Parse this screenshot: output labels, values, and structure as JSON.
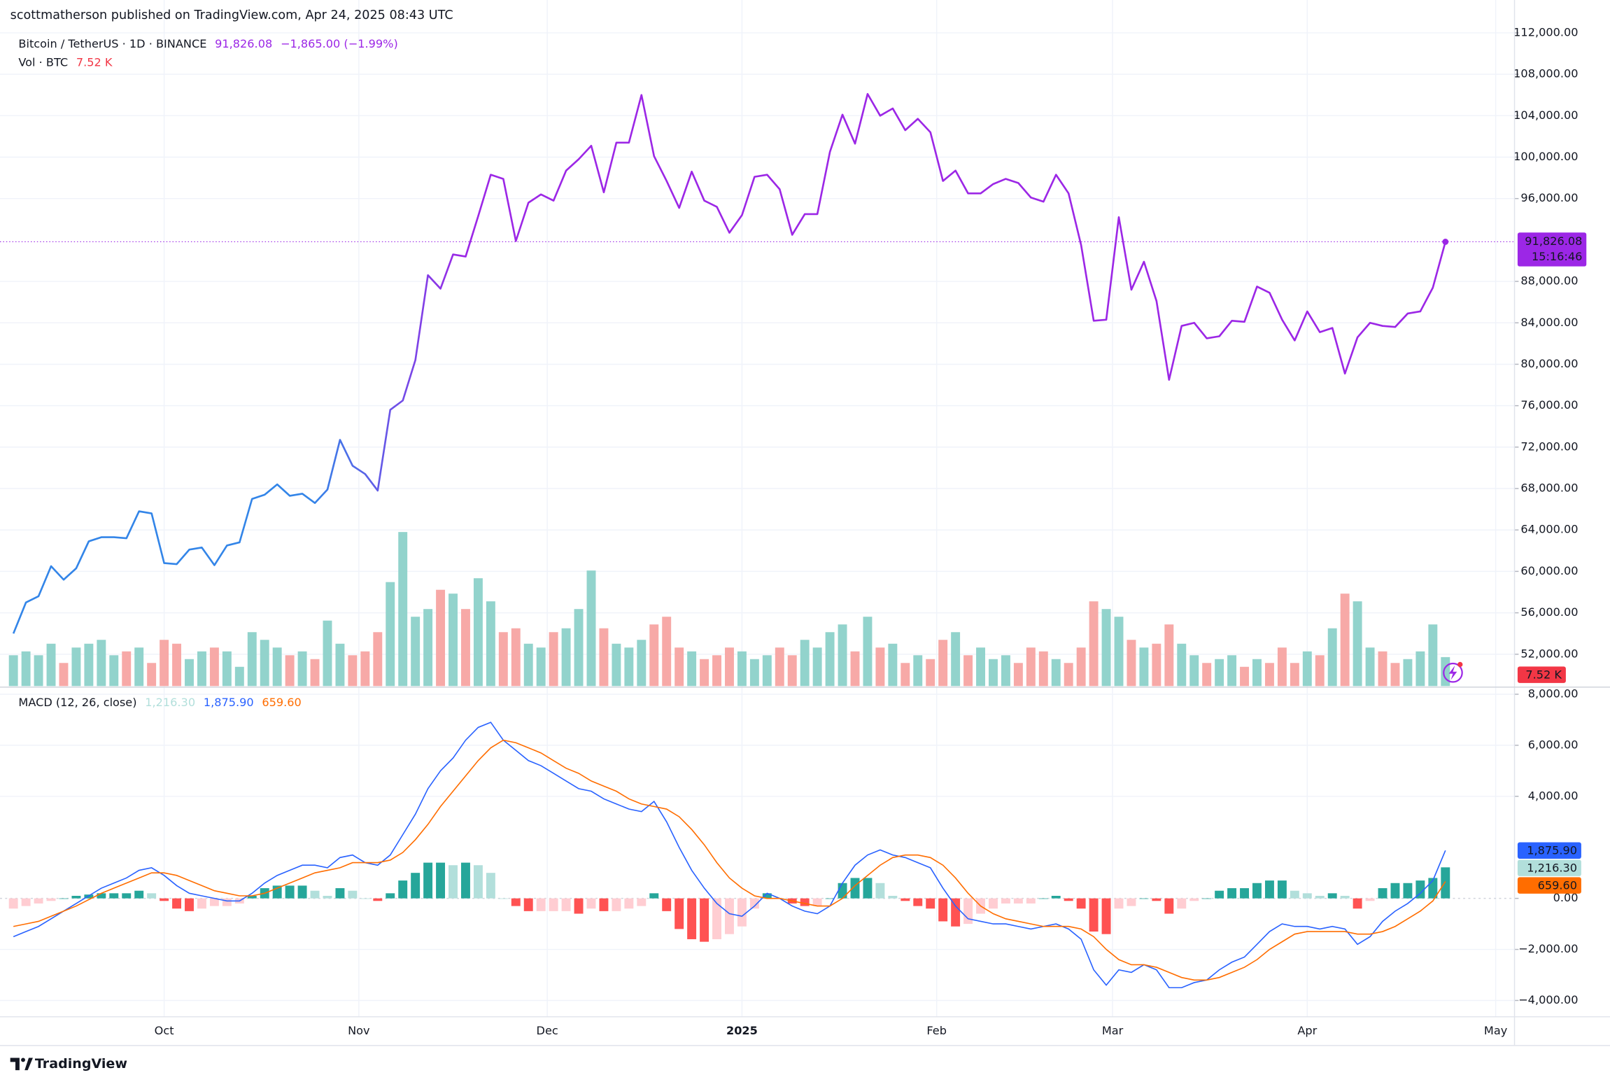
{
  "header": "scottmatherson published on TradingView.com, Apr 24, 2025 08:43 UTC",
  "footer": {
    "brand": "TradingView"
  },
  "chart_data": [
    {
      "type": "line",
      "title": "Bitcoin / TetherUS · 1D · BINANCE",
      "last_label": "91,826.08",
      "change_label": "−1,865.00 (−1.99%)",
      "countdown": "15:16:46",
      "color": "#9c27e6",
      "gradient_from": "#3385e8",
      "x": [
        0,
        2,
        4,
        6,
        8,
        10,
        12,
        14,
        16,
        18,
        20,
        22,
        24,
        26,
        28,
        30,
        32,
        34,
        36,
        38,
        40,
        42,
        44,
        46,
        48,
        50,
        52,
        54,
        56,
        58,
        60,
        62,
        64,
        66,
        68,
        70,
        72,
        74,
        76,
        78,
        80,
        82,
        84,
        86,
        88,
        90,
        92,
        94,
        96,
        98,
        100,
        102,
        104,
        106,
        108,
        110,
        112,
        114,
        116,
        118,
        120,
        122,
        124,
        126,
        128,
        130,
        132,
        134,
        136,
        138,
        140,
        142,
        144,
        146,
        148,
        150,
        152,
        154,
        156,
        158,
        160,
        162,
        164,
        166,
        168,
        170,
        172,
        174,
        176,
        178,
        180,
        182,
        184,
        186,
        188,
        190,
        192,
        194,
        196,
        198,
        200,
        202,
        204,
        206,
        208,
        210,
        212,
        214,
        216,
        218,
        220,
        222,
        224,
        226,
        228
      ],
      "values": [
        54000,
        57000,
        57600,
        60500,
        59200,
        60300,
        62900,
        63300,
        63300,
        63200,
        65800,
        65600,
        60800,
        60700,
        62100,
        62300,
        60600,
        62500,
        62800,
        67000,
        67400,
        68400,
        67300,
        67500,
        66600,
        67900,
        72700,
        70200,
        69400,
        67800,
        75600,
        76500,
        80400,
        88600,
        87300,
        90600,
        90400,
        94300,
        98300,
        97900,
        91900,
        95600,
        96400,
        95800,
        98700,
        99800,
        101100,
        96600,
        101400,
        101400,
        106000,
        100100,
        97700,
        95100,
        98600,
        95800,
        95200,
        92700,
        94400,
        98100,
        98300,
        96900,
        92500,
        94500,
        94500,
        100500,
        104100,
        101300,
        106100,
        104000,
        104700,
        102600,
        103700,
        102400,
        97700,
        98700,
        96500,
        96500,
        97400,
        97900,
        97500,
        96100,
        95700,
        98300,
        96500,
        91500,
        84200,
        84300,
        94200,
        87200,
        89900,
        86100,
        78500,
        83700,
        84000,
        82500,
        82700,
        84200,
        84100,
        87500,
        86900,
        84300,
        82300,
        85100,
        83100,
        83500,
        79100,
        82600,
        84000,
        83700,
        83600,
        84900,
        85100,
        87400,
        91826.08
      ],
      "xlim": [
        -0.5,
        239
      ],
      "xticks": [
        {
          "value": 24,
          "label": "Oct"
        },
        {
          "value": 55,
          "label": "Nov"
        },
        {
          "value": 85,
          "label": "Dec"
        },
        {
          "value": 116,
          "label": "2025"
        },
        {
          "value": 147,
          "label": "Feb"
        },
        {
          "value": 175,
          "label": "Mar"
        },
        {
          "value": 206,
          "label": "Apr"
        },
        {
          "value": 236,
          "label": "May"
        }
      ],
      "ylim": [
        48925,
        112990
      ],
      "yticks": [
        {
          "value": 52000,
          "label": "52,000.00"
        },
        {
          "value": 56000,
          "label": "56,000.00"
        },
        {
          "value": 60000,
          "label": "60,000.00"
        },
        {
          "value": 64000,
          "label": "64,000.00"
        },
        {
          "value": 68000,
          "label": "68,000.00"
        },
        {
          "value": 72000,
          "label": "72,000.00"
        },
        {
          "value": 76000,
          "label": "76,000.00"
        },
        {
          "value": 80000,
          "label": "80,000.00"
        },
        {
          "value": 84000,
          "label": "84,000.00"
        },
        {
          "value": 88000,
          "label": "88,000.00"
        },
        {
          "value": 96000,
          "label": "96,000.00"
        },
        {
          "value": 100000,
          "label": "100,000.00"
        },
        {
          "value": 104000,
          "label": "104,000.00"
        },
        {
          "value": 108000,
          "label": "108,000.00"
        },
        {
          "value": 112000,
          "label": "112,000.00"
        }
      ],
      "grid": true
    },
    {
      "type": "bar",
      "title": "Vol · BTC",
      "last_label": "7.52 K",
      "up_color": "#92d3cc",
      "down_color": "#f7a9a7",
      "label_color": "#f23645",
      "values": [
        8,
        9,
        8,
        11,
        6,
        10,
        11,
        12,
        8,
        9,
        10,
        6,
        12,
        11,
        7,
        9,
        10,
        9,
        5,
        14,
        12,
        10,
        8,
        9,
        7,
        17,
        11,
        8,
        9,
        14,
        27,
        40,
        18,
        20,
        25,
        24,
        20,
        28,
        22,
        14,
        15,
        11,
        10,
        14,
        15,
        20,
        30,
        15,
        11,
        10,
        12,
        16,
        18,
        10,
        9,
        7,
        8,
        10,
        9,
        7,
        8,
        10,
        8,
        12,
        10,
        14,
        16,
        9,
        18,
        10,
        11,
        6,
        8,
        7,
        12,
        14,
        8,
        10,
        7,
        8,
        6,
        10,
        9,
        7,
        6,
        10,
        22,
        20,
        18,
        12,
        10,
        11,
        16,
        11,
        8,
        6,
        7,
        8,
        5,
        7,
        6,
        10,
        6,
        9,
        8,
        15,
        24,
        22,
        10,
        9,
        6,
        7,
        9,
        16,
        7.52
      ]
    },
    {
      "type": "macd",
      "title": "MACD (12, 26, close)",
      "series": [
        {
          "values": [
            -400,
            -300,
            -200,
            -100,
            0,
            100,
            150,
            200,
            200,
            200,
            300,
            200,
            -100,
            -400,
            -500,
            -400,
            -300,
            -300,
            -200,
            100,
            400,
            500,
            500,
            500,
            300,
            100,
            400,
            300,
            0,
            -100,
            200,
            700,
            1000,
            1400,
            1400,
            1300,
            1400,
            1300,
            1000,
            0,
            -300,
            -500,
            -500,
            -500,
            -500,
            -600,
            -400,
            -500,
            -500,
            -400,
            -300,
            200,
            -500,
            -1200,
            -1600,
            -1700,
            -1600,
            -1400,
            -1100,
            -400,
            200,
            0,
            -200,
            -300,
            -300,
            0,
            600,
            800,
            800,
            600,
            100,
            -100,
            -300,
            -400,
            -900,
            -1100,
            -1000,
            -600,
            -400,
            -200,
            -200,
            -200,
            0,
            100,
            -100,
            -400,
            -1300,
            -1400,
            -400,
            -300,
            0,
            -100,
            -600,
            -400,
            -100,
            0,
            300,
            400,
            400,
            600,
            700,
            700,
            300,
            200,
            100,
            200,
            100,
            -400,
            -100,
            400,
            600,
            600,
            700,
            800,
            1216.3
          ],
          "value_label": "1,216.30",
          "colors": {
            "grow_above": "#26a69a",
            "fall_above": "#b2dfdb",
            "grow_below": "#ffcdd2",
            "fall_below": "#ff5252"
          },
          "color": "#b2dfdb"
        },
        {
          "values": [
            -1500,
            -1300,
            -1100,
            -800,
            -500,
            -200,
            100,
            400,
            600,
            800,
            1100,
            1200,
            900,
            500,
            200,
            100,
            0,
            -100,
            -100,
            200,
            600,
            900,
            1100,
            1300,
            1300,
            1200,
            1600,
            1700,
            1400,
            1300,
            1700,
            2500,
            3300,
            4300,
            5000,
            5500,
            6200,
            6700,
            6900,
            6200,
            5800,
            5400,
            5200,
            4900,
            4600,
            4300,
            4200,
            3900,
            3700,
            3500,
            3400,
            3800,
            3000,
            2000,
            1100,
            400,
            -200,
            -600,
            -700,
            -300,
            200,
            0,
            -300,
            -500,
            -600,
            -300,
            600,
            1300,
            1700,
            1900,
            1700,
            1600,
            1400,
            1200,
            400,
            -300,
            -800,
            -900,
            -1000,
            -1000,
            -1100,
            -1200,
            -1100,
            -1000,
            -1200,
            -1600,
            -2800,
            -3400,
            -2800,
            -2900,
            -2600,
            -2800,
            -3500,
            -3500,
            -3300,
            -3200,
            -2800,
            -2500,
            -2300,
            -1800,
            -1300,
            -1000,
            -1100,
            -1100,
            -1200,
            -1100,
            -1200,
            -1800,
            -1500,
            -900,
            -500,
            -200,
            200,
            700,
            1875.9
          ],
          "value_label": "1,875.90",
          "color": "#2962ff"
        },
        {
          "values": [
            -1100,
            -1000,
            -900,
            -700,
            -500,
            -300,
            -50,
            200,
            400,
            600,
            800,
            1000,
            1000,
            900,
            700,
            500,
            300,
            200,
            100,
            100,
            200,
            400,
            600,
            800,
            1000,
            1100,
            1200,
            1400,
            1400,
            1400,
            1500,
            1800,
            2300,
            2900,
            3600,
            4200,
            4800,
            5400,
            5900,
            6200,
            6100,
            5900,
            5700,
            5400,
            5100,
            4900,
            4600,
            4400,
            4200,
            3900,
            3700,
            3600,
            3500,
            3200,
            2700,
            2100,
            1400,
            800,
            400,
            100,
            0,
            0,
            -100,
            -200,
            -300,
            -300,
            0,
            500,
            900,
            1300,
            1600,
            1700,
            1700,
            1600,
            1300,
            800,
            200,
            -300,
            -600,
            -800,
            -900,
            -1000,
            -1100,
            -1100,
            -1100,
            -1200,
            -1500,
            -2000,
            -2400,
            -2600,
            -2600,
            -2700,
            -2900,
            -3100,
            -3200,
            -3200,
            -3100,
            -2900,
            -2700,
            -2400,
            -2000,
            -1700,
            -1400,
            -1300,
            -1300,
            -1300,
            -1300,
            -1400,
            -1400,
            -1300,
            -1100,
            -800,
            -500,
            -100,
            659.6
          ],
          "value_label": "659.60",
          "color": "#ff6d00"
        }
      ],
      "ylim": [
        -4640,
        8240
      ],
      "yticks": [
        {
          "value": -4000,
          "label": "−4,000.00"
        },
        {
          "value": -2000,
          "label": "−2,000.00"
        },
        {
          "value": 0,
          "label": "0.00"
        },
        {
          "value": 4000,
          "label": "4,000.00"
        },
        {
          "value": 6000,
          "label": "6,000.00"
        },
        {
          "value": 8000,
          "label": "8,000.00"
        }
      ],
      "grid": true
    }
  ]
}
